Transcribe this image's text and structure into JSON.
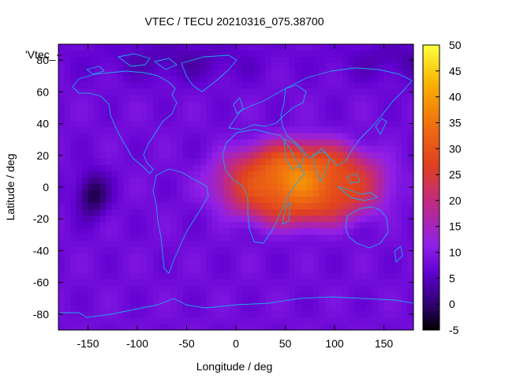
{
  "chart_data": {
    "type": "heatmap",
    "title": "VTEC / TECU 20210316_075.38700",
    "xlabel": "Longitude / deg",
    "ylabel": "Latitude / deg",
    "xlim": [
      -180,
      180
    ],
    "ylim": [
      -90,
      90
    ],
    "xticks": [
      -150,
      -100,
      -50,
      0,
      50,
      100,
      150
    ],
    "yticks": [
      80,
      60,
      40,
      20,
      0,
      -20,
      -40,
      -60,
      -80
    ],
    "series": [
      {
        "name": "'Vtec_"
      }
    ],
    "colorbar": {
      "range": [
        -5,
        50
      ],
      "ticks": [
        50,
        45,
        40,
        35,
        30,
        25,
        20,
        15,
        10,
        5,
        0,
        -5
      ],
      "palette": [
        "#000000",
        "#300070",
        "#6000d0",
        "#9020e8",
        "#c02a80",
        "#e04020",
        "#f07010",
        "#f8b000",
        "#ffff40"
      ]
    },
    "features": {
      "background_tecu": 8,
      "peak": {
        "lon": 60,
        "lat": 5,
        "tecu": 38
      },
      "crest_band": {
        "lon_from": -20,
        "lon_to": 150,
        "lat_from": -25,
        "lat_to": 30,
        "tecu": 30
      },
      "minimum": {
        "lon": -145,
        "lat": -5,
        "tecu": -2
      },
      "grid": false,
      "coastlines": true,
      "coastline_color": "#1ea8e8"
    }
  }
}
